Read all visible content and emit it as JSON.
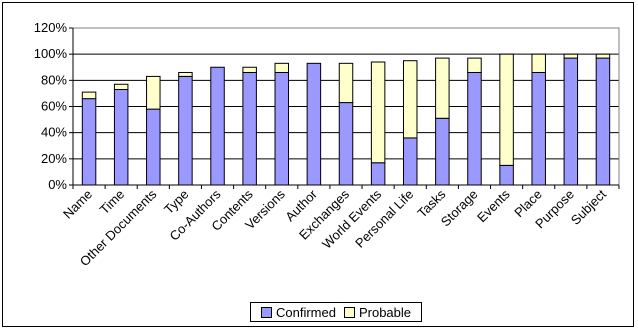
{
  "chart_data": {
    "type": "bar",
    "stacked": true,
    "categories": [
      "Name",
      "Time",
      "Other Documents",
      "Type",
      "Co-Authors",
      "Contents",
      "Versions",
      "Author",
      "Exchanges",
      "World Events",
      "Personal Life",
      "Tasks",
      "Storage",
      "Events",
      "Place",
      "Purpose",
      "Subject"
    ],
    "series": [
      {
        "name": "Confirmed",
        "color": "#9999ff",
        "values": [
          66,
          73,
          58,
          83,
          90,
          86,
          86,
          93,
          63,
          17,
          36,
          51,
          86,
          15,
          86,
          97,
          97
        ]
      },
      {
        "name": "Probable",
        "color": "#ffffcc",
        "values": [
          5,
          4,
          25,
          3,
          0,
          4,
          7,
          0,
          30,
          77,
          59,
          46,
          11,
          85,
          14,
          3,
          3
        ]
      }
    ],
    "yticks": [
      "0%",
      "20%",
      "40%",
      "60%",
      "80%",
      "100%",
      "120%"
    ],
    "ylim": [
      0,
      120
    ],
    "grid": true,
    "legend": "bottom"
  }
}
